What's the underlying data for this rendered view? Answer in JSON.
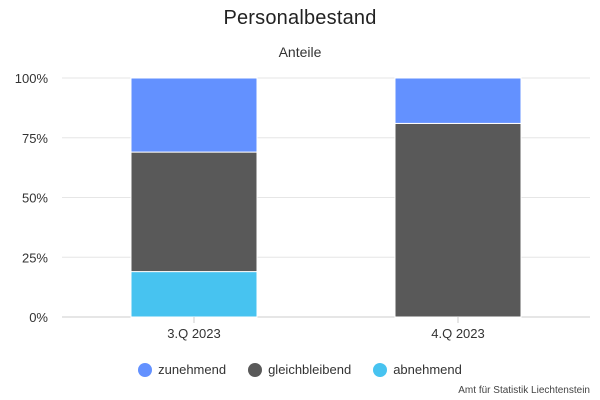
{
  "chart_data": {
    "type": "bar",
    "stacked": true,
    "title": "Personalbestand",
    "subtitle": "Anteile",
    "categories": [
      "3.Q 2023",
      "4.Q 2023"
    ],
    "series": [
      {
        "name": "abnehmend",
        "color": "#47c3f0",
        "values": [
          19,
          0
        ]
      },
      {
        "name": "gleichbleibend",
        "color": "#595959",
        "values": [
          50,
          81
        ]
      },
      {
        "name": "zunehmend",
        "color": "#6391ff",
        "values": [
          31,
          19
        ]
      }
    ],
    "ylim": [
      0,
      100
    ],
    "yticks": [
      "0%",
      "25%",
      "50%",
      "75%",
      "100%"
    ],
    "grid": true,
    "legend_position": "bottom",
    "legend_order": [
      "zunehmend",
      "gleichbleibend",
      "abnehmend"
    ]
  },
  "credit": "Amt für Statistik Liechtenstein"
}
